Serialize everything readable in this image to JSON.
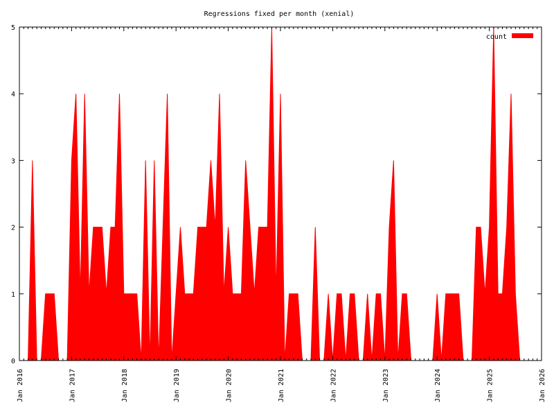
{
  "chart_data": {
    "type": "area",
    "title": "Regressions fixed per month (xenial)",
    "xlabel": "",
    "ylabel": "",
    "legend": {
      "label": "count",
      "placement": "top-right"
    },
    "series_color": "#ff0000",
    "xlim": [
      "2016-01",
      "2026-01"
    ],
    "ylim": [
      0,
      5
    ],
    "y_ticks": [
      0,
      1,
      2,
      3,
      4,
      5
    ],
    "x_ticks": [
      "Jan 2016",
      "Jan 2017",
      "Jan 2018",
      "Jan 2019",
      "Jan 2020",
      "Jan 2021",
      "Jan 2022",
      "Jan 2023",
      "Jan 2024",
      "Jan 2025",
      "Jan 2026"
    ],
    "series": [
      {
        "name": "count",
        "points": [
          [
            "2016-03",
            0
          ],
          [
            "2016-04",
            3
          ],
          [
            "2016-05",
            0
          ],
          [
            "2016-06",
            0
          ],
          [
            "2016-07",
            1
          ],
          [
            "2016-08",
            1
          ],
          [
            "2016-09",
            1
          ],
          [
            "2016-10",
            0
          ],
          [
            "2016-12",
            0
          ],
          [
            "2017-01",
            3
          ],
          [
            "2017-02",
            4
          ],
          [
            "2017-03",
            1
          ],
          [
            "2017-04",
            4
          ],
          [
            "2017-05",
            1
          ],
          [
            "2017-06",
            2
          ],
          [
            "2017-07",
            2
          ],
          [
            "2017-08",
            2
          ],
          [
            "2017-09",
            1
          ],
          [
            "2017-10",
            2
          ],
          [
            "2017-11",
            2
          ],
          [
            "2017-12",
            4
          ],
          [
            "2018-01",
            1
          ],
          [
            "2018-02",
            1
          ],
          [
            "2018-03",
            1
          ],
          [
            "2018-04",
            1
          ],
          [
            "2018-05",
            0
          ],
          [
            "2018-06",
            3
          ],
          [
            "2018-07",
            0
          ],
          [
            "2018-08",
            3
          ],
          [
            "2018-09",
            0
          ],
          [
            "2018-10",
            2
          ],
          [
            "2018-11",
            4
          ],
          [
            "2018-12",
            0
          ],
          [
            "2019-01",
            1
          ],
          [
            "2019-02",
            2
          ],
          [
            "2019-03",
            1
          ],
          [
            "2019-04",
            1
          ],
          [
            "2019-05",
            1
          ],
          [
            "2019-06",
            2
          ],
          [
            "2019-07",
            2
          ],
          [
            "2019-08",
            2
          ],
          [
            "2019-09",
            3
          ],
          [
            "2019-10",
            2
          ],
          [
            "2019-11",
            4
          ],
          [
            "2019-12",
            1
          ],
          [
            "2020-01",
            2
          ],
          [
            "2020-02",
            1
          ],
          [
            "2020-03",
            1
          ],
          [
            "2020-04",
            1
          ],
          [
            "2020-05",
            3
          ],
          [
            "2020-06",
            2
          ],
          [
            "2020-07",
            1
          ],
          [
            "2020-08",
            2
          ],
          [
            "2020-09",
            2
          ],
          [
            "2020-10",
            2
          ],
          [
            "2020-11",
            5
          ],
          [
            "2020-12",
            1
          ],
          [
            "2021-01",
            4
          ],
          [
            "2021-02",
            0
          ],
          [
            "2021-03",
            1
          ],
          [
            "2021-04",
            1
          ],
          [
            "2021-05",
            1
          ],
          [
            "2021-06",
            0
          ],
          [
            "2021-08",
            0
          ],
          [
            "2021-09",
            2
          ],
          [
            "2021-10",
            0
          ],
          [
            "2021-11",
            0
          ],
          [
            "2021-12",
            1
          ],
          [
            "2022-01",
            0
          ],
          [
            "2022-02",
            1
          ],
          [
            "2022-03",
            1
          ],
          [
            "2022-04",
            0
          ],
          [
            "2022-05",
            1
          ],
          [
            "2022-06",
            1
          ],
          [
            "2022-07",
            0
          ],
          [
            "2022-08",
            0
          ],
          [
            "2022-09",
            1
          ],
          [
            "2022-10",
            0
          ],
          [
            "2022-11",
            1
          ],
          [
            "2022-12",
            1
          ],
          [
            "2023-01",
            0
          ],
          [
            "2023-02",
            2
          ],
          [
            "2023-03",
            3
          ],
          [
            "2023-04",
            0
          ],
          [
            "2023-05",
            1
          ],
          [
            "2023-06",
            1
          ],
          [
            "2023-07",
            0
          ],
          [
            "2023-12",
            0
          ],
          [
            "2024-01",
            1
          ],
          [
            "2024-02",
            0
          ],
          [
            "2024-03",
            1
          ],
          [
            "2024-04",
            1
          ],
          [
            "2024-05",
            1
          ],
          [
            "2024-06",
            1
          ],
          [
            "2024-07",
            0
          ],
          [
            "2024-09",
            0
          ],
          [
            "2024-10",
            2
          ],
          [
            "2024-11",
            2
          ],
          [
            "2024-12",
            1
          ],
          [
            "2025-01",
            2
          ],
          [
            "2025-02",
            5
          ],
          [
            "2025-03",
            1
          ],
          [
            "2025-04",
            1
          ],
          [
            "2025-05",
            2
          ],
          [
            "2025-06",
            4
          ],
          [
            "2025-07",
            1
          ],
          [
            "2025-08",
            0
          ]
        ]
      }
    ]
  }
}
